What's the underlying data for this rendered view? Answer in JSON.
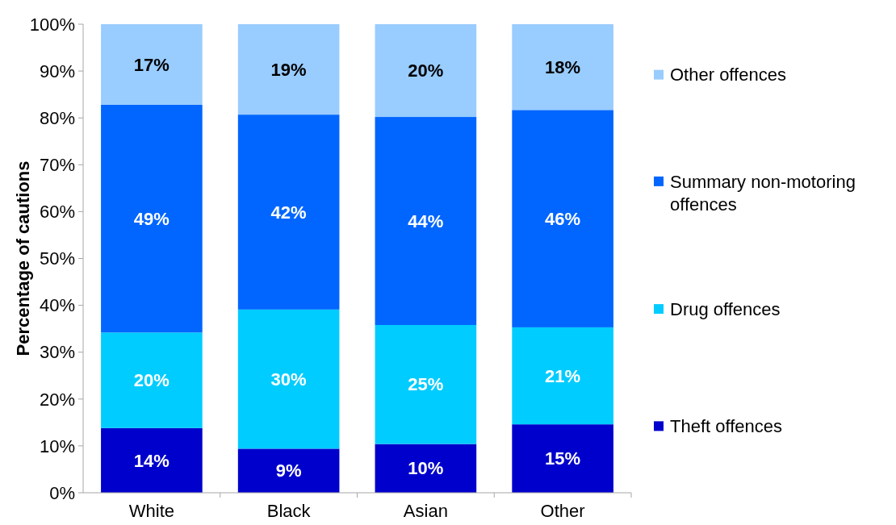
{
  "chart_data": {
    "type": "bar",
    "stacked": true,
    "ylabel": "Percentage of cautions",
    "categories": [
      "White",
      "Black",
      "Asian",
      "Other"
    ],
    "series": [
      {
        "name": "Theft offences",
        "color": "#0000cc",
        "values": [
          13.8,
          9.4,
          10.4,
          14.6
        ],
        "value_labels": [
          "14%",
          "9%",
          "10%",
          "15%"
        ]
      },
      {
        "name": "Drug offences",
        "color": "#00ccff",
        "values": [
          20.4,
          29.7,
          25.4,
          20.7
        ],
        "value_labels": [
          "20%",
          "30%",
          "25%",
          "21%"
        ]
      },
      {
        "name": "Summary non-motoring offences",
        "color": "#0066ff",
        "values": [
          48.6,
          41.6,
          44.4,
          46.4
        ],
        "value_labels": [
          "49%",
          "42%",
          "44%",
          "46%"
        ]
      },
      {
        "name": "Other offences",
        "color": "#99ccff",
        "values": [
          17.2,
          19.3,
          19.8,
          18.3
        ],
        "value_labels": [
          "17%",
          "19%",
          "20%",
          "18%"
        ]
      }
    ],
    "ylim": [
      0,
      100
    ],
    "yticks": [
      {
        "value": 0,
        "label": "0%"
      },
      {
        "value": 10,
        "label": "10%"
      },
      {
        "value": 20,
        "label": "20%"
      },
      {
        "value": 30,
        "label": "30%"
      },
      {
        "value": 40,
        "label": "40%"
      },
      {
        "value": 50,
        "label": "50%"
      },
      {
        "value": 60,
        "label": "60%"
      },
      {
        "value": 70,
        "label": "70%"
      },
      {
        "value": 80,
        "label": "80%"
      },
      {
        "value": 90,
        "label": "90%"
      },
      {
        "value": 100,
        "label": "100%"
      }
    ],
    "legend": "right"
  }
}
